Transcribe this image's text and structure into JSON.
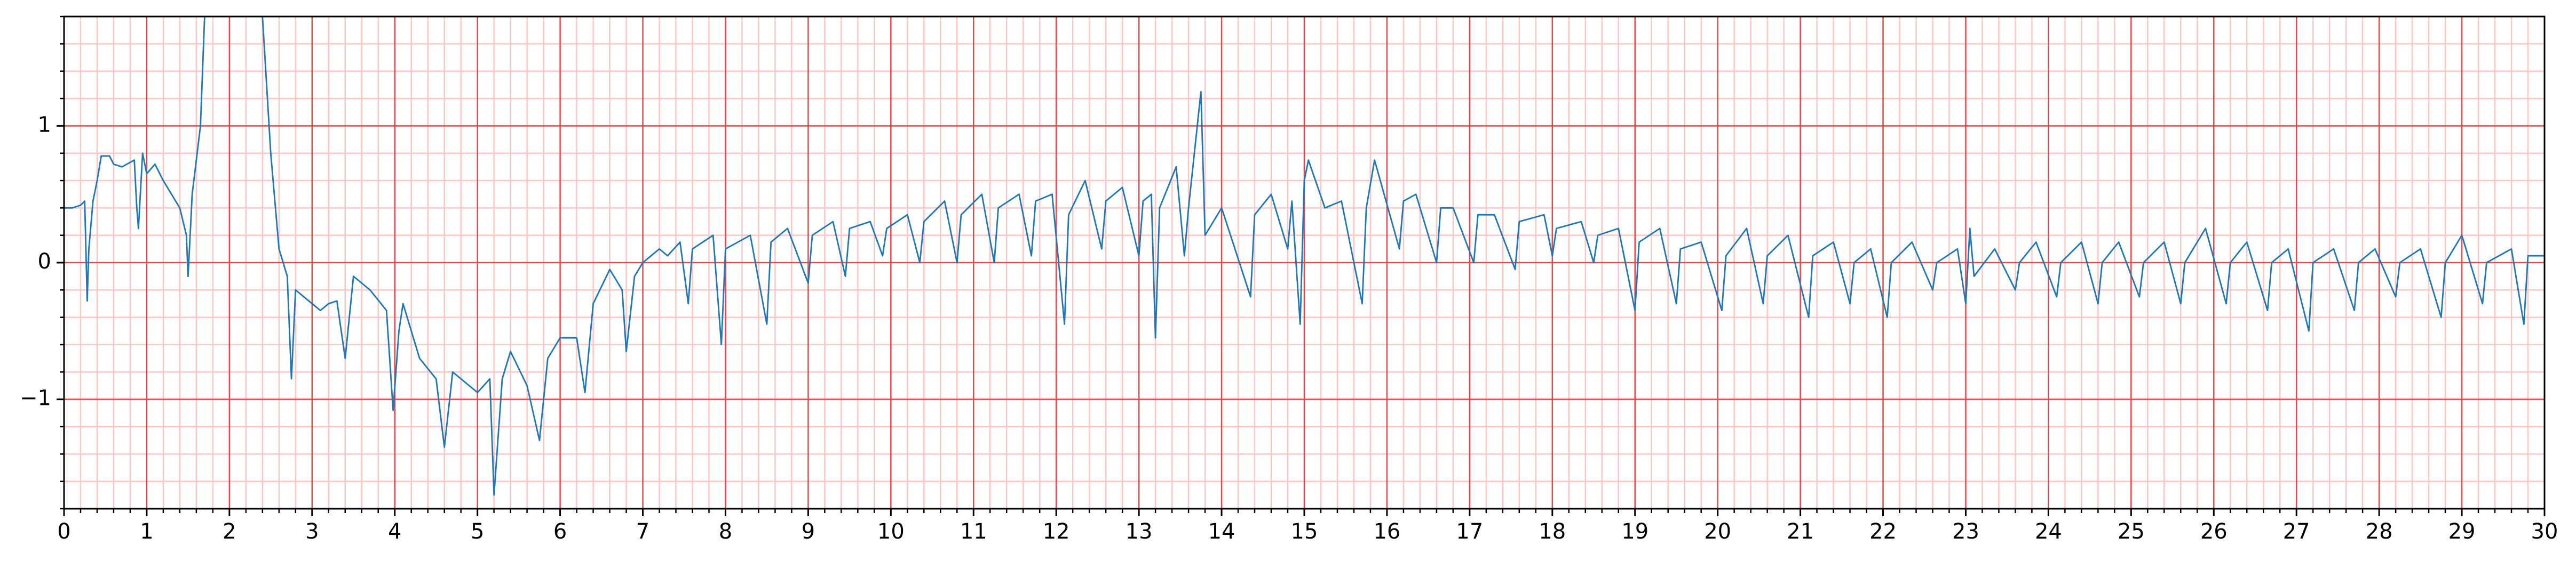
{
  "chart_data": {
    "type": "line",
    "color": "#1f77b4",
    "grid": true,
    "major_grid_color": "#e8474a",
    "minor_grid_color": "#ffc4c4",
    "xlim": [
      0,
      30
    ],
    "ylim": [
      -1.8,
      1.8
    ],
    "xticks": [
      0,
      1,
      2,
      3,
      4,
      5,
      6,
      7,
      8,
      9,
      10,
      11,
      12,
      13,
      14,
      15,
      16,
      17,
      18,
      19,
      20,
      21,
      22,
      23,
      24,
      25,
      26,
      27,
      28,
      29,
      30
    ],
    "yticks": [
      {
        "value": -1,
        "label": "−1"
      },
      0,
      1
    ],
    "xminorticks": [
      0.2,
      0.4,
      0.6,
      0.8,
      1.2,
      1.4,
      1.6,
      1.8,
      2.2,
      2.4,
      2.6,
      2.8,
      3.2,
      3.4,
      3.6,
      3.8,
      4.2,
      4.4,
      4.6,
      4.8,
      5.2,
      5.4,
      5.6,
      5.8,
      6.2,
      6.4,
      6.6,
      6.8,
      7.2,
      7.4,
      7.6,
      7.8,
      8.2,
      8.4,
      8.6,
      8.8,
      9.2,
      9.4,
      9.6,
      9.8,
      10.2,
      10.4,
      10.6,
      10.8,
      11.2,
      11.4,
      11.6,
      11.8,
      12.2,
      12.4,
      12.6,
      12.8,
      13.2,
      13.4,
      13.6,
      13.8,
      14.2,
      14.4,
      14.6,
      14.8,
      15.2,
      15.4,
      15.6,
      15.8,
      16.2,
      16.4,
      16.6,
      16.8,
      17.2,
      17.4,
      17.6,
      17.8,
      18.2,
      18.4,
      18.6,
      18.8,
      19.2,
      19.4,
      19.6,
      19.8,
      20.2,
      20.4,
      20.6,
      20.8,
      21.2,
      21.4,
      21.6,
      21.8,
      22.2,
      22.4,
      22.6,
      22.8,
      23.2,
      23.4,
      23.6,
      23.8,
      24.2,
      24.4,
      24.6,
      24.8,
      25.2,
      25.4,
      25.6,
      25.8,
      26.2,
      26.4,
      26.6,
      26.8,
      27.2,
      27.4,
      27.6,
      27.8,
      28.2,
      28.4,
      28.6,
      28.8,
      29.2,
      29.4,
      29.6,
      29.8
    ],
    "yminorticks": [
      -1.8,
      -1.6,
      -1.4,
      -1.2,
      -0.8,
      -0.6,
      -0.4,
      -0.2,
      0.2,
      0.4,
      0.6,
      0.8,
      1.2,
      1.4,
      1.6,
      1.8
    ],
    "x": [
      0,
      0.1,
      0.2,
      0.25,
      0.28,
      0.3,
      0.35,
      0.4,
      0.45,
      0.55,
      0.6,
      0.7,
      0.85,
      0.88,
      0.9,
      0.95,
      1.0,
      1.1,
      1.2,
      1.3,
      1.4,
      1.48,
      1.5,
      1.55,
      1.65,
      1.7,
      1.8,
      2.3,
      2.4,
      2.5,
      2.6,
      2.7,
      2.75,
      2.8,
      3.0,
      3.1,
      3.2,
      3.3,
      3.4,
      3.5,
      3.7,
      3.9,
      3.98,
      4.05,
      4.1,
      4.3,
      4.5,
      4.6,
      4.7,
      5.0,
      5.15,
      5.2,
      5.3,
      5.4,
      5.6,
      5.75,
      5.85,
      6.0,
      6.2,
      6.3,
      6.4,
      6.6,
      6.75,
      6.8,
      6.9,
      7.0,
      7.2,
      7.3,
      7.45,
      7.55,
      7.6,
      7.85,
      7.95,
      8.0,
      8.3,
      8.5,
      8.55,
      8.75,
      9.0,
      9.05,
      9.3,
      9.45,
      9.5,
      9.75,
      9.9,
      9.95,
      10.2,
      10.35,
      10.4,
      10.65,
      10.8,
      10.85,
      11.1,
      11.25,
      11.3,
      11.55,
      11.7,
      11.75,
      11.95,
      12.1,
      12.15,
      12.35,
      12.55,
      12.6,
      12.8,
      13.0,
      13.05,
      13.15,
      13.2,
      13.25,
      13.45,
      13.55,
      13.6,
      13.75,
      13.8,
      14.0,
      14.35,
      14.4,
      14.6,
      14.8,
      14.85,
      14.95,
      15.0,
      15.05,
      15.25,
      15.45,
      15.7,
      15.75,
      15.85,
      16.15,
      16.2,
      16.35,
      16.6,
      16.65,
      16.8,
      17.05,
      17.1,
      17.3,
      17.55,
      17.6,
      17.9,
      18.0,
      18.05,
      18.35,
      18.5,
      18.55,
      18.8,
      19.0,
      19.05,
      19.3,
      19.5,
      19.55,
      19.8,
      20.05,
      20.1,
      20.35,
      20.55,
      20.6,
      20.85,
      21.1,
      21.15,
      21.4,
      21.6,
      21.65,
      21.85,
      22.05,
      22.1,
      22.35,
      22.6,
      22.65,
      22.9,
      23.0,
      23.05,
      23.1,
      23.35,
      23.6,
      23.65,
      23.85,
      24.1,
      24.15,
      24.4,
      24.6,
      24.65,
      24.85,
      25.1,
      25.15,
      25.4,
      25.6,
      25.65,
      25.9,
      26.15,
      26.2,
      26.4,
      26.65,
      26.7,
      26.9,
      27.15,
      27.2,
      27.45,
      27.7,
      27.75,
      27.95,
      28.2,
      28.25,
      28.5,
      28.75,
      28.8,
      29.0,
      29.25,
      29.3,
      29.6,
      29.75,
      29.8,
      30.0
    ],
    "values": [
      0.4,
      0.4,
      0.42,
      0.45,
      -0.28,
      0.1,
      0.45,
      0.6,
      0.78,
      0.78,
      0.72,
      0.7,
      0.75,
      0.4,
      0.25,
      0.8,
      0.65,
      0.72,
      0.6,
      0.5,
      0.4,
      0.2,
      -0.1,
      0.5,
      1.0,
      1.8,
      2.5,
      2.5,
      1.8,
      0.8,
      0.1,
      -0.1,
      -0.85,
      -0.2,
      -0.3,
      -0.35,
      -0.3,
      -0.28,
      -0.7,
      -0.1,
      -0.2,
      -0.35,
      -1.08,
      -0.5,
      -0.3,
      -0.7,
      -0.85,
      -1.35,
      -0.8,
      -0.95,
      -0.85,
      -1.7,
      -0.85,
      -0.65,
      -0.9,
      -1.3,
      -0.7,
      -0.55,
      -0.55,
      -0.95,
      -0.3,
      -0.05,
      -0.2,
      -0.65,
      -0.1,
      0.0,
      0.1,
      0.05,
      0.15,
      -0.3,
      0.1,
      0.2,
      -0.6,
      0.1,
      0.2,
      -0.45,
      0.15,
      0.25,
      -0.15,
      0.2,
      0.3,
      -0.1,
      0.25,
      0.3,
      0.05,
      0.25,
      0.35,
      0.0,
      0.3,
      0.45,
      0.0,
      0.35,
      0.5,
      0.0,
      0.4,
      0.5,
      0.05,
      0.45,
      0.5,
      -0.45,
      0.35,
      0.6,
      0.1,
      0.45,
      0.55,
      0.05,
      0.45,
      0.5,
      -0.55,
      0.4,
      0.7,
      0.05,
      0.4,
      1.25,
      0.2,
      0.4,
      -0.25,
      0.35,
      0.5,
      0.1,
      0.45,
      -0.45,
      0.6,
      0.75,
      0.4,
      0.45,
      -0.3,
      0.4,
      0.75,
      0.1,
      0.45,
      0.5,
      0.0,
      0.4,
      0.4,
      0.0,
      0.35,
      0.35,
      -0.05,
      0.3,
      0.35,
      0.05,
      0.25,
      0.3,
      0.0,
      0.2,
      0.25,
      -0.35,
      0.15,
      0.25,
      -0.3,
      0.1,
      0.15,
      -0.35,
      0.05,
      0.25,
      -0.3,
      0.05,
      0.2,
      -0.4,
      0.05,
      0.15,
      -0.3,
      0.0,
      0.1,
      -0.4,
      0.0,
      0.15,
      -0.2,
      0.0,
      0.1,
      -0.3,
      0.25,
      -0.1,
      0.1,
      -0.2,
      0.0,
      0.15,
      -0.25,
      0.0,
      0.15,
      -0.3,
      0.0,
      0.15,
      -0.25,
      0.0,
      0.15,
      -0.3,
      0.0,
      0.25,
      -0.3,
      0.0,
      0.15,
      -0.35,
      0.0,
      0.1,
      -0.5,
      0.0,
      0.1,
      -0.35,
      0.0,
      0.1,
      -0.25,
      0.0,
      0.1,
      -0.4,
      0.0,
      0.2,
      -0.3,
      0.0,
      0.1,
      -0.45,
      0.05,
      0.05
    ]
  }
}
